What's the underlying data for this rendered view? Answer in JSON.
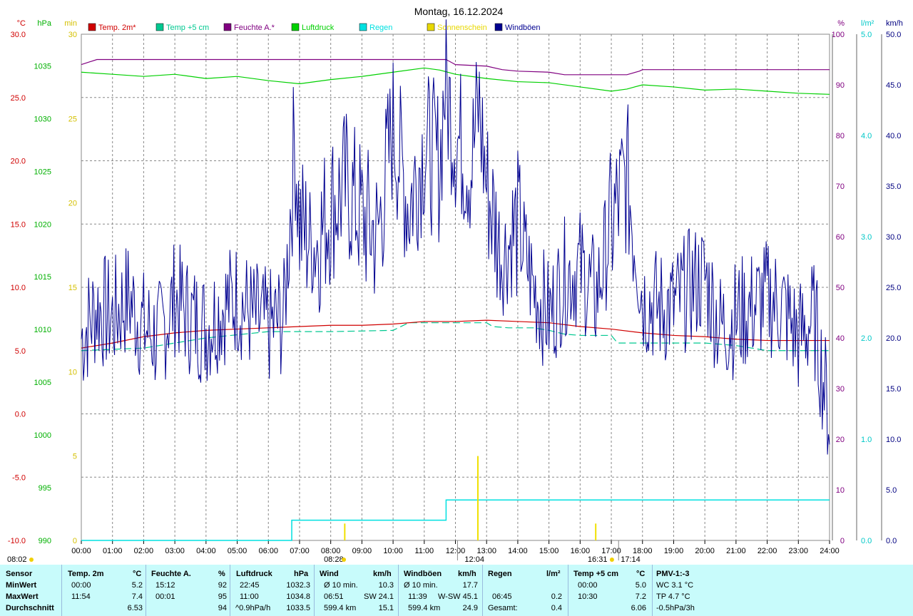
{
  "chart_data": {
    "type": "line",
    "title": "Montag, 16.12.2024",
    "x_ticks": [
      "00:00",
      "01:00",
      "02:00",
      "03:00",
      "04:00",
      "05:00",
      "06:00",
      "07:00",
      "08:00",
      "09:00",
      "10:00",
      "11:00",
      "12:00",
      "13:00",
      "14:00",
      "15:00",
      "16:00",
      "17:00",
      "18:00",
      "19:00",
      "20:00",
      "21:00",
      "22:00",
      "23:00",
      "24:00"
    ],
    "axes": {
      "temp": {
        "unit": "°C",
        "color": "#d00000",
        "ylim": [
          -10,
          30
        ],
        "ticks": [
          "30.0",
          "25.0",
          "20.0",
          "15.0",
          "10.0",
          "5.0",
          "0.0",
          "-5.0",
          "-10.0"
        ],
        "values": [
          30,
          25,
          20,
          15,
          10,
          5,
          0,
          -5,
          -10
        ]
      },
      "pressure": {
        "unit": "hPa",
        "color": "#00b000",
        "ylim": [
          990,
          1038
        ],
        "ticks": [
          "1035",
          "1030",
          "1025",
          "1020",
          "1015",
          "1010",
          "1005",
          "1000",
          "995",
          "990"
        ],
        "values": [
          1035,
          1030,
          1025,
          1020,
          1015,
          1010,
          1005,
          1000,
          995,
          990
        ]
      },
      "sun": {
        "unit": "min",
        "color": "#d4c000",
        "ylim": [
          0,
          30
        ],
        "ticks": [
          "30",
          "25",
          "20",
          "15",
          "10",
          "5",
          "0"
        ],
        "values": [
          30,
          25,
          20,
          15,
          10,
          5,
          0
        ]
      },
      "humidity": {
        "unit": "%",
        "color": "#800080",
        "ylim": [
          0,
          100
        ],
        "ticks": [
          "100",
          "90",
          "80",
          "70",
          "60",
          "50",
          "40",
          "30",
          "20",
          "10",
          "0"
        ],
        "values": [
          100,
          90,
          80,
          70,
          60,
          50,
          40,
          30,
          20,
          10,
          0
        ]
      },
      "rain": {
        "unit": "l/m²",
        "color": "#00c8c8",
        "ylim": [
          0,
          5
        ],
        "ticks": [
          "5.0",
          "4.0",
          "3.0",
          "2.0",
          "1.0",
          "0.0"
        ],
        "values": [
          5,
          4,
          3,
          2,
          1,
          0
        ]
      },
      "wind": {
        "unit": "km/h",
        "color": "#000080",
        "ylim": [
          0,
          50
        ],
        "ticks": [
          "50.0",
          "45.0",
          "40.0",
          "35.0",
          "30.0",
          "25.0",
          "20.0",
          "15.0",
          "10.0",
          "5.0",
          "0.0"
        ],
        "values": [
          50,
          45,
          40,
          35,
          30,
          25,
          20,
          15,
          10,
          5,
          0
        ]
      }
    },
    "legend": [
      {
        "name": "Temp. 2m*",
        "color": "#d00000"
      },
      {
        "name": "Temp +5 cm",
        "color": "#00c890"
      },
      {
        "name": "Feuchte A.*",
        "color": "#800080"
      },
      {
        "name": "Luftdruck",
        "color": "#00d000"
      },
      {
        "name": "Regen",
        "color": "#00e0e0"
      },
      {
        "name": "Sonnenschein",
        "color": "#e8d800"
      },
      {
        "name": "Windböen",
        "color": "#000090"
      }
    ],
    "series": [
      {
        "name": "Temp. 2m*",
        "axis": "temp",
        "x": [
          0,
          1,
          2,
          3,
          4,
          5,
          6,
          7,
          8,
          9,
          10,
          11,
          12,
          13,
          14,
          15,
          16,
          17,
          18,
          19,
          20,
          21,
          22,
          23,
          24
        ],
        "values": [
          5.2,
          5.6,
          6.1,
          6.4,
          6.6,
          6.7,
          6.8,
          6.9,
          7.0,
          7.0,
          7.1,
          7.3,
          7.3,
          7.4,
          7.3,
          7.2,
          6.9,
          6.7,
          6.4,
          6.2,
          6.1,
          5.9,
          5.8,
          5.8,
          5.8
        ]
      },
      {
        "name": "Temp +5 cm",
        "axis": "temp",
        "x": [
          0,
          2,
          4,
          6,
          8,
          10,
          10.5,
          11,
          12,
          13,
          13.2,
          13.7,
          14.5,
          15,
          15.5,
          16,
          17,
          17.2,
          18,
          19,
          20,
          21,
          22,
          23,
          24
        ],
        "values": [
          5.0,
          5.2,
          6.0,
          6.5,
          6.5,
          6.6,
          7.2,
          7.2,
          7.2,
          7.2,
          6.9,
          6.8,
          6.8,
          6.6,
          6.3,
          6.2,
          6.2,
          5.6,
          5.6,
          5.6,
          5.6,
          5.4,
          5.0,
          5.0,
          5.0
        ]
      },
      {
        "name": "Feuchte A.*",
        "axis": "humidity",
        "x": [
          0,
          0.5,
          1,
          3,
          6,
          8,
          10,
          11.7,
          12,
          13,
          13.5,
          14,
          15,
          15.5,
          16,
          17,
          17.5,
          17.9,
          18,
          19,
          20,
          21,
          22,
          23,
          24
        ],
        "values": [
          94,
          95,
          95,
          95,
          95,
          95,
          95,
          95,
          94,
          93.7,
          93,
          92.7,
          92.5,
          92,
          92,
          92,
          92,
          92.7,
          93,
          93,
          93,
          93,
          93,
          93,
          93
        ]
      },
      {
        "name": "Luftdruck",
        "axis": "pressure",
        "x": [
          0,
          1,
          2,
          3,
          4,
          5,
          6,
          7,
          8,
          9,
          10,
          11,
          11.5,
          12,
          13,
          14,
          15,
          16,
          17,
          17.5,
          18,
          19,
          20,
          21,
          22,
          23,
          24
        ],
        "values": [
          1034.4,
          1034.2,
          1034.0,
          1034.2,
          1033.8,
          1034.0,
          1033.6,
          1033.3,
          1033.7,
          1034.0,
          1034.4,
          1034.8,
          1034.6,
          1034.2,
          1033.8,
          1033.5,
          1033.4,
          1033.0,
          1032.6,
          1032.8,
          1033.2,
          1033.0,
          1032.7,
          1032.8,
          1032.6,
          1032.4,
          1032.3
        ]
      },
      {
        "name": "Regen",
        "axis": "rain",
        "x": [
          0,
          6.75,
          6.75,
          11.7,
          11.7,
          24
        ],
        "values": [
          0,
          0,
          0.2,
          0.2,
          0.4,
          0.4
        ]
      },
      {
        "name": "Sonnenschein",
        "axis": "sun",
        "bars_x": [
          8.45,
          12.72,
          16.5
        ],
        "values": [
          1,
          5,
          1
        ]
      },
      {
        "name": "Windböen",
        "axis": "wind",
        "x": [
          0,
          0.5,
          1,
          1.5,
          2,
          2.5,
          3,
          3.5,
          4,
          4.5,
          5,
          5.5,
          6,
          6.5,
          6.85,
          7,
          7.5,
          8,
          8.5,
          9,
          9.5,
          10,
          10.5,
          11,
          11.5,
          11.65,
          12,
          12.5,
          12.75,
          13,
          13.5,
          14,
          14.5,
          15,
          15.5,
          16,
          16.5,
          17,
          17.5,
          18,
          18.5,
          19,
          19.5,
          20,
          20.5,
          21,
          21.5,
          22,
          22.5,
          23,
          23.5,
          24
        ],
        "values": [
          20,
          23,
          22,
          24,
          21,
          20,
          24,
          22,
          21,
          23,
          24,
          22,
          21,
          22,
          40,
          31,
          29,
          33,
          35,
          32,
          30,
          41,
          33,
          39,
          37,
          45,
          40,
          37,
          43,
          35,
          28,
          31,
          25,
          22,
          26,
          27,
          24,
          31,
          36,
          24,
          23,
          23,
          25,
          26,
          21,
          22,
          23,
          24,
          23,
          20,
          22,
          12
        ]
      }
    ]
  },
  "summary": {
    "labels": {
      "sensor": "Sensor",
      "min": "MinWert",
      "max": "MaxWert",
      "avg": "Durchschnitt"
    },
    "temp": {
      "title": "Temp. 2m",
      "unit": "°C",
      "min_time": "00:00",
      "min": "5.2",
      "max_time": "11:54",
      "max": "7.4",
      "avg": "6.53"
    },
    "hum": {
      "title": "Feuchte A.",
      "unit": "%",
      "min_time": "15:12",
      "min": "92",
      "max_time": "00:01",
      "max": "95",
      "avg": "94"
    },
    "press": {
      "title": "Luftdruck",
      "unit": "hPa",
      "min_time": "22:45",
      "min": "1032.3",
      "max_time": "11:00",
      "max": "1034.8",
      "trend": "^0.9hPa/h",
      "avg": "1033.5"
    },
    "wind": {
      "title": "Wind",
      "unit": "km/h",
      "r1": "Ø 10 min.",
      "r1v": "10.3",
      "r2": "06:51",
      "r2d": "SW",
      "r2v": "24.1",
      "r3": "599.4 km",
      "r3v": "15.1"
    },
    "gust": {
      "title": "Windböen",
      "unit": "km/h",
      "r1": "Ø 10 min.",
      "r1v": "17.7",
      "r2": "11:39",
      "r2d": "W-SW",
      "r2v": "45.1",
      "r3": "599.4 km",
      "r3v": "24.9"
    },
    "rain": {
      "title": "Regen",
      "unit": "l/m²",
      "max_time": "06:45",
      "max": "0.2",
      "total_label": "Gesamt:",
      "total": "0.4"
    },
    "t5": {
      "title": "Temp +5 cm",
      "unit": "°C",
      "min_time": "00:00",
      "min": "5.0",
      "max_time": "10:30",
      "max": "7.2",
      "avg": "6.06"
    },
    "pmv": {
      "title": "PMV-1:-3",
      "r1": "WC 3.1 °C",
      "r2": "TP 4.7 °C",
      "r3": "-0.5hPa/3h"
    }
  },
  "events": {
    "sunrise": "08:02",
    "sun_start": "08:28",
    "noon": "12:04",
    "sun_end": "16:31",
    "sunset": "17:14"
  }
}
